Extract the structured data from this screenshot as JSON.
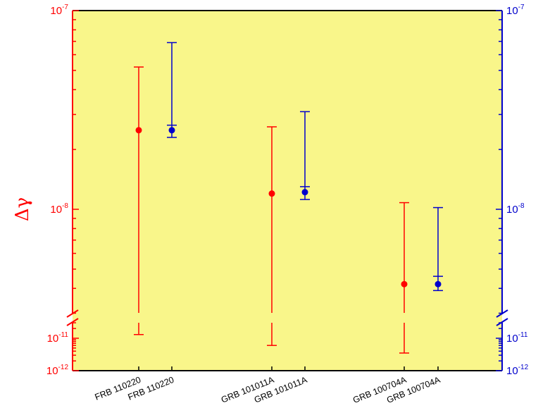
{
  "chart_data": {
    "type": "scatter",
    "title": "",
    "xlabel": "",
    "ylabel": "Δγ",
    "background": "#f9f68a",
    "left_axis_color": "#ff0000",
    "right_axis_color": "#0000cc",
    "y_scale": "log, broken axis",
    "upper_segment_range": [
      "1e-8",
      "1e-7"
    ],
    "lower_segment_range": [
      "1e-12",
      "1e-11"
    ],
    "upper_ticks": [
      {
        "base": "10",
        "exp": "-7",
        "value": 1e-07
      },
      {
        "base": "10",
        "exp": "-8",
        "value": 1e-08
      }
    ],
    "lower_ticks": [
      {
        "base": "10",
        "exp": "-11",
        "value": 1e-11
      },
      {
        "base": "10",
        "exp": "-12",
        "value": 1e-12
      }
    ],
    "categories": [
      "FRB 110220",
      "FRB 110220",
      "GRB 101011A",
      "GRB 101011A",
      "GRB 100704A",
      "GRB 100704A"
    ],
    "series": [
      {
        "color": "#ff0000",
        "points": [
          {
            "category": "FRB 110220",
            "y": 2.5e-08,
            "upper": 5.2e-08,
            "lower_segment": "lower",
            "lower": 1.3e-11
          },
          {
            "category": "GRB 101011A",
            "y": 1.2e-08,
            "upper": 2.6e-08,
            "lower_segment": "lower",
            "lower": 6e-12
          },
          {
            "category": "GRB 100704A",
            "y": 4.2e-09,
            "upper": 1.08e-08,
            "lower_segment": "lower",
            "lower": 3.5e-12
          }
        ]
      },
      {
        "color": "#0000cc",
        "points": [
          {
            "category": "FRB 110220",
            "y": 2.5e-08,
            "upper": 6.9e-08,
            "lower_segment": "upper",
            "lower": 2.3e-08,
            "mid_cap": 2.65e-08
          },
          {
            "category": "GRB 101011A",
            "y": 1.22e-08,
            "upper": 3.1e-08,
            "lower_segment": "upper",
            "lower": 1.12e-08,
            "mid_cap": 1.3e-08
          },
          {
            "category": "GRB 100704A",
            "y": 4.2e-09,
            "upper": 1.02e-08,
            "lower_segment": "upper",
            "lower": 3.9e-09,
            "mid_cap": 4.6e-09
          }
        ]
      }
    ]
  }
}
